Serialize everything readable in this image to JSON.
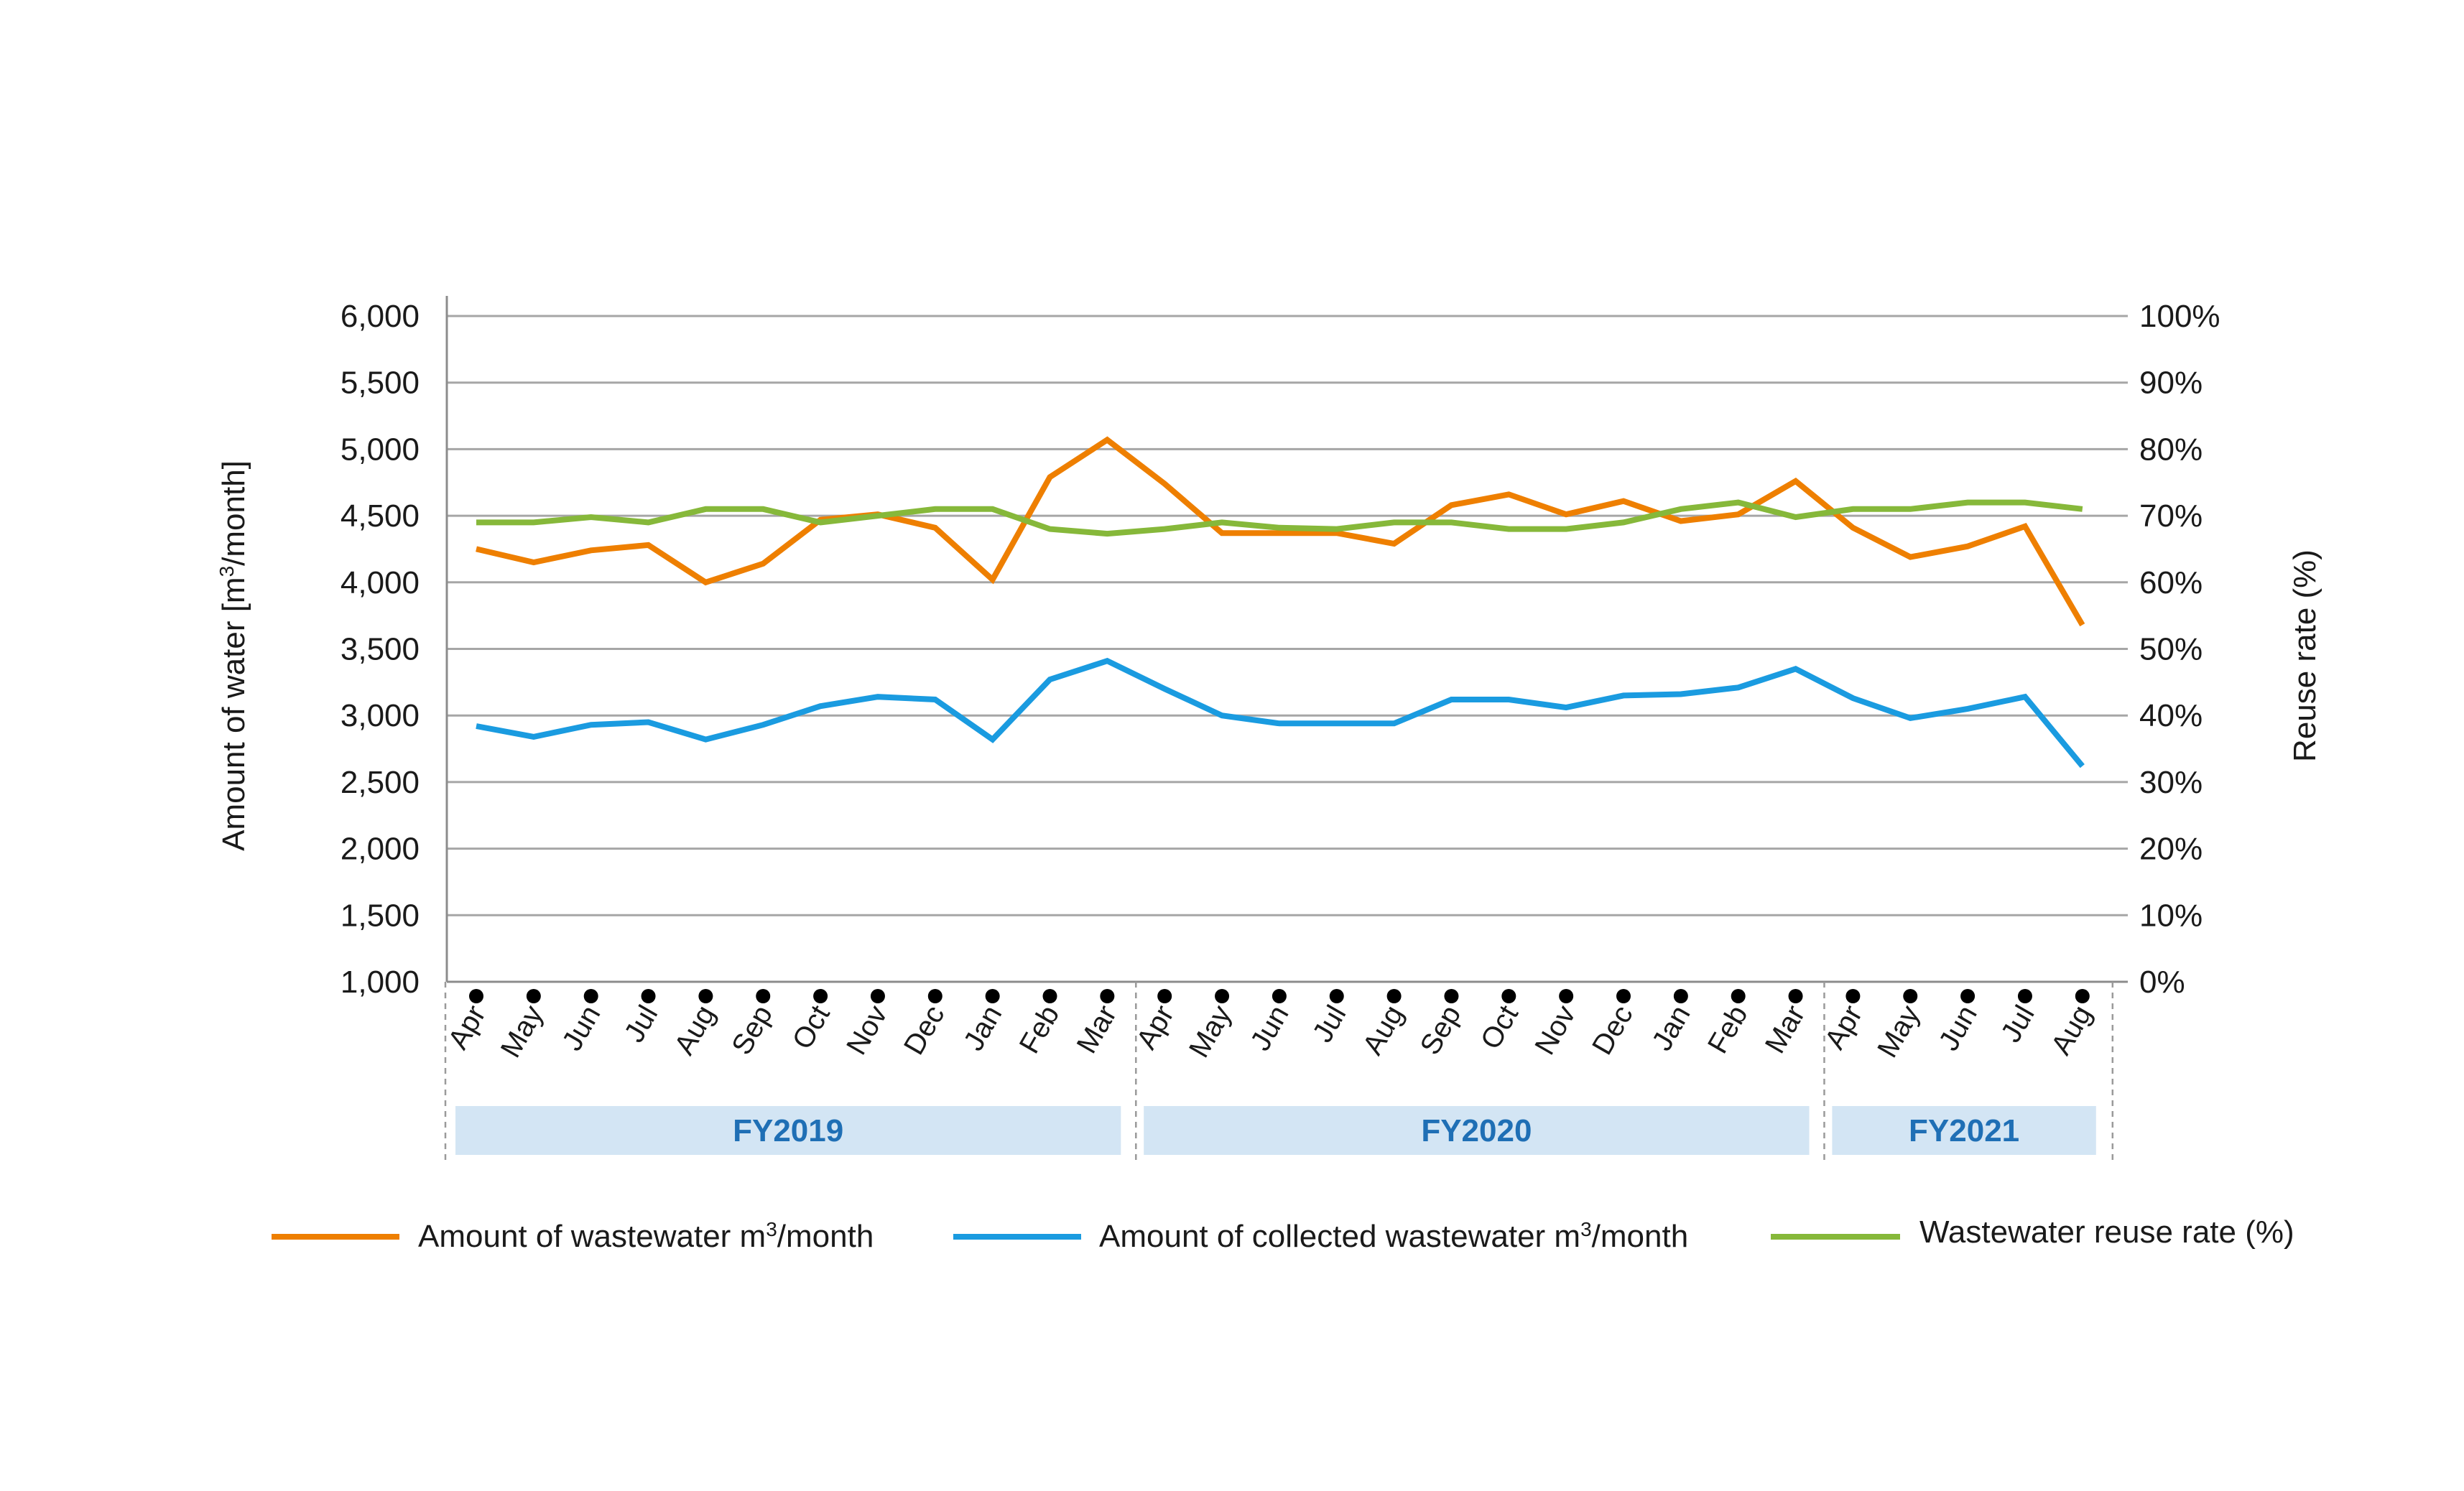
{
  "chart_data": {
    "type": "line",
    "categories": [
      "Apr",
      "May",
      "Jun",
      "Jul",
      "Aug",
      "Sep",
      "Oct",
      "Nov",
      "Dec",
      "Jan",
      "Feb",
      "Mar",
      "Apr",
      "May",
      "Jun",
      "Jul",
      "Aug",
      "Sep",
      "Oct",
      "Nov",
      "Dec",
      "Jan",
      "Feb",
      "Mar",
      "Apr",
      "May",
      "Jun",
      "Jul",
      "Aug"
    ],
    "fiscal_years": [
      {
        "label": "FY2019",
        "start": 0,
        "end": 11
      },
      {
        "label": "FY2020",
        "start": 12,
        "end": 23
      },
      {
        "label": "FY2021",
        "start": 24,
        "end": 28
      }
    ],
    "y_left": {
      "label_main": "Amount of water [m",
      "label_sup": "3",
      "label_tail": "/month]",
      "ticks": [
        "1,000",
        "1,500",
        "2,000",
        "2,500",
        "3,000",
        "3,500",
        "4,000",
        "4,500",
        "5,000",
        "5,500",
        "6,000"
      ],
      "ylim": [
        1000,
        6000
      ]
    },
    "y_right": {
      "label": "Reuse rate (%)",
      "ticks": [
        "0%",
        "10%",
        "20%",
        "30%",
        "40%",
        "50%",
        "60%",
        "70%",
        "80%",
        "90%",
        "100%"
      ],
      "ylim": [
        0,
        100
      ]
    },
    "grid": true,
    "legend_placement": "bottom",
    "series": [
      {
        "name_main": "Amount of wastewater m",
        "name_sup": "3",
        "name_tail": "/month",
        "axis": "left",
        "color": "#ee7f00",
        "values": [
          4250,
          4150,
          4240,
          4280,
          4000,
          4140,
          4470,
          4510,
          4410,
          4020,
          4790,
          5070,
          4740,
          4370,
          4370,
          4370,
          4290,
          4580,
          4660,
          4510,
          4610,
          4460,
          4510,
          4760,
          4410,
          4190,
          4270,
          4420,
          3680
        ]
      },
      {
        "name_main": "Amount of collected wastewater m",
        "name_sup": "3",
        "name_tail": "/month",
        "axis": "left",
        "color": "#1a9be0",
        "values": [
          2920,
          2840,
          2930,
          2950,
          2820,
          2930,
          3070,
          3140,
          3120,
          2820,
          3270,
          3410,
          3200,
          3000,
          2940,
          2940,
          2940,
          3120,
          3120,
          3060,
          3150,
          3160,
          3210,
          3350,
          3130,
          2980,
          3050,
          3140,
          2620
        ]
      },
      {
        "name_main": "Wastewater reuse rate (%)",
        "axis": "right",
        "color": "#86b83a",
        "values": [
          69,
          69,
          69.8,
          69,
          71,
          71,
          69,
          70,
          71,
          71,
          68,
          67.3,
          68,
          69,
          68.2,
          68,
          69,
          69,
          68,
          68,
          69,
          71,
          72,
          69.8,
          71,
          71,
          72,
          72,
          71
        ]
      }
    ]
  }
}
